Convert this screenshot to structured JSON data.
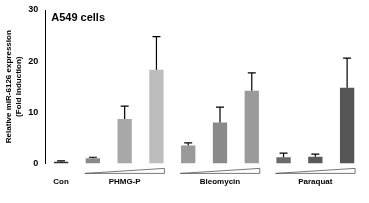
{
  "chart_data": {
    "type": "bar",
    "title": "A549 cells",
    "y_label": [
      "Relative miR-6126 expression",
      "(Fold Induction)"
    ],
    "categories": [
      "Con",
      null,
      "PHMG-P",
      null,
      null,
      "Bleomycin",
      null,
      null,
      "Paraquat",
      null
    ],
    "values": [
      0.3,
      1.0,
      8.7,
      18.3,
      3.5,
      8.0,
      14.2,
      1.2,
      1.3,
      14.8
    ],
    "errors": [
      0.2,
      0.2,
      2.5,
      6.5,
      0.5,
      3.0,
      3.5,
      0.8,
      0.5,
      5.8
    ],
    "colors": [
      "#333333",
      "#8a8a8a",
      "#a8a8a8",
      "#bdbdbd",
      "#9a9a9a",
      "#8a8a8a",
      "#9a9a9a",
      "#6a6a6a",
      "#5a5a5a",
      "#555555"
    ],
    "ylim": [
      0,
      30
    ],
    "yticks": [
      0,
      10,
      20,
      30
    ],
    "grid": false
  }
}
